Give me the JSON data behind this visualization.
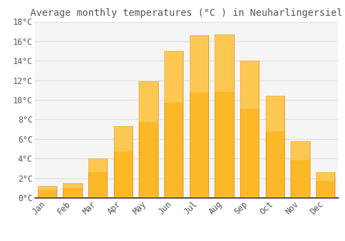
{
  "title": "Average monthly temperatures (°C ) in Neuharlingersiel",
  "months": [
    "Jan",
    "Feb",
    "Mar",
    "Apr",
    "May",
    "Jun",
    "Jul",
    "Aug",
    "Sep",
    "Oct",
    "Nov",
    "Dec"
  ],
  "values": [
    1.2,
    1.5,
    4.0,
    7.3,
    11.9,
    15.0,
    16.6,
    16.7,
    14.0,
    10.4,
    5.8,
    2.6
  ],
  "bar_color": "#FDB827",
  "bar_edge_color": "#E09010",
  "background_color": "#FFFFFF",
  "plot_bg_color": "#F5F5F5",
  "grid_color": "#DDDDDD",
  "text_color": "#555555",
  "axis_color": "#000000",
  "ylim": [
    0,
    18
  ],
  "yticks": [
    0,
    2,
    4,
    6,
    8,
    10,
    12,
    14,
    16,
    18
  ],
  "title_fontsize": 10,
  "tick_fontsize": 8.5,
  "font_family": "monospace",
  "bar_width": 0.75
}
